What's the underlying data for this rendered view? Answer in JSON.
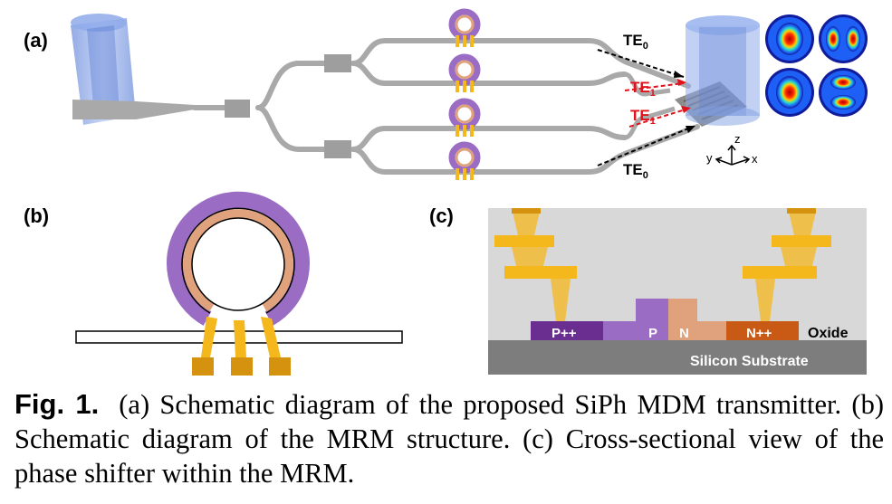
{
  "panels": {
    "a": "(a)",
    "b": "(b)",
    "c": "(c)"
  },
  "panel_a": {
    "mode_labels": {
      "te0": "TE",
      "te0_sub": "0",
      "te1": "TE",
      "te1_sub": "1"
    },
    "axes": {
      "z": "z",
      "y": "y",
      "x": "x"
    }
  },
  "panel_c": {
    "layers": {
      "oxide": "Oxide",
      "substrate": "Silicon Substrate"
    },
    "doping": {
      "p_plus_plus": "P++",
      "p": "P",
      "n": "N",
      "n_plus_plus": "N++"
    }
  },
  "caption": {
    "label": "Fig. 1.",
    "text": "(a) Schematic diagram of the proposed SiPh MDM transmitter. (b) Schematic diagram of the MRM structure. (c) Cross-sectional view of the phase shifter within the MRM."
  },
  "colors": {
    "waveguide": "#a9a9a9",
    "fiber": "#7f9fe0",
    "ring_violet": "#9a6cc4",
    "ring_orange": "#dfa27c",
    "electrode": "#f5b81c",
    "p_plus_plus": "#6a2d90",
    "n_plus_plus": "#c95a16",
    "oxide": "#d8d8d8",
    "substrate": "#7d7d7d",
    "te1_red": "#e0121b"
  }
}
